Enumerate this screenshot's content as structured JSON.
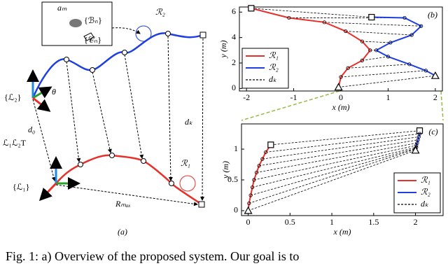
{
  "diagram": {
    "frame_l2": "{ℒ₂}",
    "theta": "θ",
    "transform": "ℒ₁ℒ₂T",
    "d0": "d₀",
    "frame_l1": "{ℒ₁}",
    "rmax": "Rₘₐₓ",
    "robot2": "ℛ₂",
    "robot1": "ℛ₁",
    "dk": "dₖ",
    "panel": "(a)",
    "inset_a": "aₘ",
    "inset_b": "{ℬₙ}",
    "inset_c": "{𝒞ₙ}"
  },
  "chart_data": [
    {
      "type": "line",
      "title": "(b)",
      "xlabel": "x (m)",
      "ylabel": "y (m)",
      "xlim": [
        -2.15,
        2.15
      ],
      "ylim": [
        -0.2,
        6.4
      ],
      "xticks": [
        -2,
        -1,
        0,
        1,
        2
      ],
      "yticks": [
        0,
        2,
        4,
        6
      ],
      "grid": false,
      "legend": "lower left",
      "series": [
        {
          "name": "ℛ₁",
          "color": "#e8302a",
          "x": [
            -1.9,
            -1.1,
            -0.35,
            0.1,
            0.45,
            0.62,
            0.45,
            0.15,
            0.0,
            -0.05
          ],
          "values": [
            6.3,
            5.55,
            5.2,
            4.5,
            3.7,
            3.0,
            2.2,
            1.6,
            0.9,
            0.1
          ]
        },
        {
          "name": "ℛ₂",
          "color": "#1f3fe0",
          "x": [
            0.65,
            1.35,
            1.7,
            1.5,
            1.05,
            0.75,
            1.0,
            1.45,
            1.8,
            2.0
          ],
          "values": [
            5.6,
            5.55,
            4.9,
            4.2,
            3.6,
            3.0,
            2.5,
            1.9,
            1.4,
            1.0
          ]
        }
      ],
      "connector": {
        "name": "dₖ",
        "color": "#000000"
      }
    },
    {
      "type": "line",
      "title": "(c)",
      "xlabel": "x (m)",
      "ylabel": "y (m)",
      "xlim": [
        -0.08,
        2.33
      ],
      "ylim": [
        -0.08,
        1.41
      ],
      "xticks": [
        0,
        0.5,
        1,
        1.5,
        2
      ],
      "yticks": [
        0,
        0.5,
        1
      ],
      "grid": false,
      "legend": "lower right",
      "series": [
        {
          "name": "ℛ₁",
          "color": "#e8302a",
          "x": [
            0.27,
            0.21,
            0.17,
            0.13,
            0.1,
            0.07,
            0.05,
            0.03,
            0.01,
            0.0
          ],
          "values": [
            1.07,
            0.95,
            0.84,
            0.73,
            0.62,
            0.5,
            0.38,
            0.25,
            0.12,
            0.0
          ]
        },
        {
          "name": "ℛ₂",
          "color": "#1f3fe0",
          "x": [
            2.05,
            2.05,
            2.04,
            2.03,
            2.02,
            2.01,
            2.01,
            2.0,
            2.0,
            2.0
          ],
          "values": [
            1.3,
            1.25,
            1.2,
            1.15,
            1.1,
            1.06,
            1.03,
            1.01,
            1.0,
            0.98
          ]
        }
      ],
      "connector": {
        "name": "dₖ",
        "color": "#000000"
      }
    }
  ],
  "caption": "Fig. 1: a) Overview of the proposed system. Our goal is to"
}
